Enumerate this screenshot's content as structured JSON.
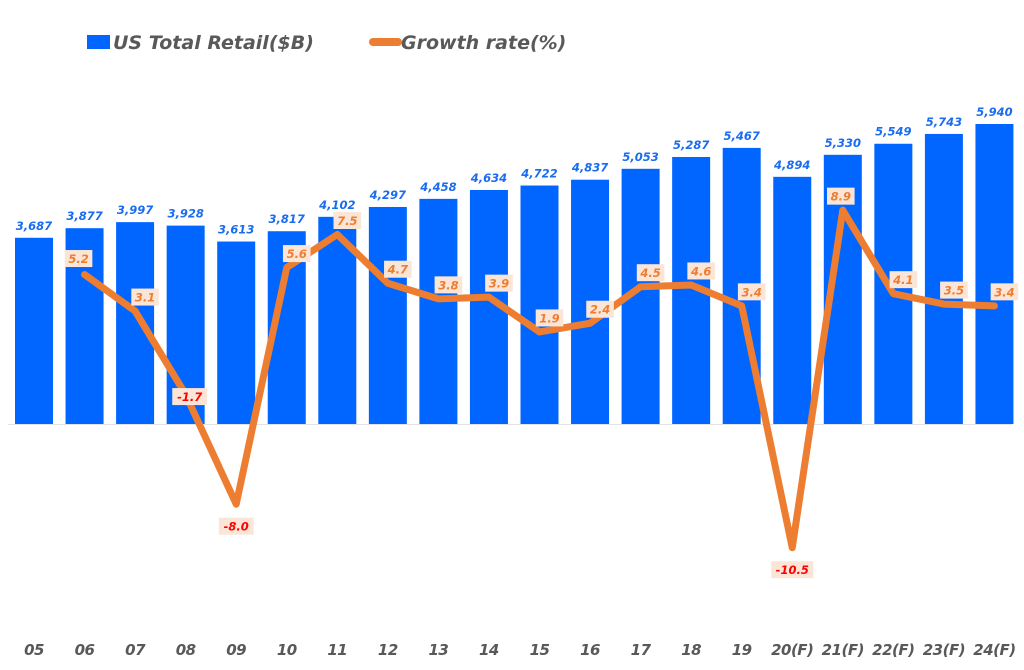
{
  "chart_data": {
    "type": "bar",
    "title": "",
    "xlabel": "",
    "ylabel": "",
    "legend_position": "top-left",
    "grid": false,
    "categories": [
      "05",
      "06",
      "07",
      "08",
      "09",
      "10",
      "11",
      "12",
      "13",
      "14",
      "15",
      "16",
      "17",
      "18",
      "19",
      "20(F)",
      "21(F)",
      "22(F)",
      "23(F)",
      "24(F)"
    ],
    "series": [
      {
        "name": "US Total Retail($B)",
        "type": "bar",
        "color": "#0066ff",
        "values": [
          3687,
          3877,
          3997,
          3928,
          3613,
          3817,
          4102,
          4297,
          4458,
          4634,
          4722,
          4837,
          5053,
          5287,
          5467,
          4894,
          5330,
          5549,
          5743,
          5940
        ],
        "labels": [
          "3,687",
          "3,877",
          "3,997",
          "3,928",
          "3,613",
          "3,817",
          "4,102",
          "4,297",
          "4,458",
          "4,634",
          "4,722",
          "4,837",
          "5,053",
          "5,287",
          "5,467",
          "4,894",
          "5,330",
          "5,549",
          "5,743",
          "5,940"
        ]
      },
      {
        "name": "Growth rate(%)",
        "type": "line",
        "color": "#ed7d31",
        "values": [
          null,
          5.2,
          3.1,
          -1.7,
          -8.0,
          5.6,
          7.5,
          4.7,
          3.8,
          3.9,
          1.9,
          2.4,
          4.5,
          4.6,
          3.4,
          -10.5,
          8.9,
          4.1,
          3.5,
          3.4
        ],
        "labels": [
          "",
          "5.2",
          "3.1",
          "-1.7",
          "-8.0",
          "5.6",
          "7.5",
          "4.7",
          "3.8",
          "3.9",
          "1.9",
          "2.4",
          "4.5",
          "4.6",
          "3.4",
          "-10.5",
          "8.9",
          "4.1",
          "3.5",
          "3.4"
        ]
      }
    ],
    "ylim_bar": [
      0,
      5940
    ],
    "ylim_line": [
      -12,
      12
    ],
    "colors": {
      "bar_label": "#1a6cf0",
      "positive_rate_label": "#ed7d31",
      "negative_rate_label": "#ff0000",
      "rate_label_bg": "#fbe5d6",
      "tick_label": "#595959"
    }
  }
}
